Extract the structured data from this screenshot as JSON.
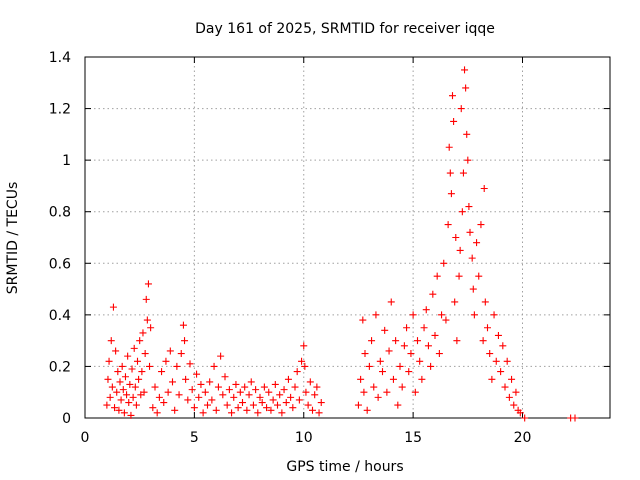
{
  "chart_data": {
    "type": "scatter",
    "title": "Day 161 of 2025, SRMTID for receiver iqqe",
    "xlabel": "GPS time / hours",
    "ylabel": "SRMTID / TECUs",
    "xlim": [
      0,
      24
    ],
    "ylim": [
      0,
      1.4
    ],
    "x_ticks": [
      0,
      5,
      10,
      15,
      20
    ],
    "x_tick_labels": [
      "0",
      "5",
      "10",
      "15",
      "20"
    ],
    "y_ticks": [
      0,
      0.2,
      0.4,
      0.6,
      0.8,
      1.0,
      1.2,
      1.4
    ],
    "y_tick_labels": [
      "0",
      "0.2",
      "0.4",
      "0.6",
      "0.8",
      "1",
      "1.2",
      "1.4"
    ],
    "grid": true,
    "marker": "plus",
    "series": [
      {
        "name": "SRMTID",
        "color": "#ff0000",
        "points": [
          [
            1.0,
            0.05
          ],
          [
            1.05,
            0.15
          ],
          [
            1.1,
            0.22
          ],
          [
            1.15,
            0.08
          ],
          [
            1.2,
            0.3
          ],
          [
            1.25,
            0.12
          ],
          [
            1.3,
            0.43
          ],
          [
            1.35,
            0.04
          ],
          [
            1.4,
            0.26
          ],
          [
            1.45,
            0.1
          ],
          [
            1.5,
            0.18
          ],
          [
            1.55,
            0.03
          ],
          [
            1.6,
            0.14
          ],
          [
            1.65,
            0.07
          ],
          [
            1.7,
            0.2
          ],
          [
            1.75,
            0.11
          ],
          [
            1.8,
            0.02
          ],
          [
            1.85,
            0.16
          ],
          [
            1.9,
            0.09
          ],
          [
            1.95,
            0.24
          ],
          [
            2.0,
            0.06
          ],
          [
            2.05,
            0.13
          ],
          [
            2.1,
            0.01
          ],
          [
            2.15,
            0.19
          ],
          [
            2.2,
            0.08
          ],
          [
            2.25,
            0.27
          ],
          [
            2.3,
            0.12
          ],
          [
            2.35,
            0.05
          ],
          [
            2.4,
            0.22
          ],
          [
            2.45,
            0.15
          ],
          [
            2.5,
            0.3
          ],
          [
            2.55,
            0.09
          ],
          [
            2.6,
            0.18
          ],
          [
            2.65,
            0.33
          ],
          [
            2.7,
            0.1
          ],
          [
            2.75,
            0.25
          ],
          [
            2.8,
            0.46
          ],
          [
            2.85,
            0.38
          ],
          [
            2.9,
            0.52
          ],
          [
            2.95,
            0.2
          ],
          [
            3.0,
            0.35
          ],
          [
            3.1,
            0.04
          ],
          [
            3.2,
            0.12
          ],
          [
            3.3,
            0.02
          ],
          [
            3.4,
            0.08
          ],
          [
            3.5,
            0.18
          ],
          [
            3.6,
            0.06
          ],
          [
            3.7,
            0.22
          ],
          [
            3.8,
            0.1
          ],
          [
            3.9,
            0.26
          ],
          [
            4.0,
            0.14
          ],
          [
            4.1,
            0.03
          ],
          [
            4.2,
            0.2
          ],
          [
            4.3,
            0.09
          ],
          [
            4.4,
            0.25
          ],
          [
            4.5,
            0.36
          ],
          [
            4.55,
            0.3
          ],
          [
            4.6,
            0.15
          ],
          [
            4.7,
            0.07
          ],
          [
            4.8,
            0.21
          ],
          [
            4.9,
            0.11
          ],
          [
            5.0,
            0.04
          ],
          [
            5.1,
            0.17
          ],
          [
            5.2,
            0.08
          ],
          [
            5.3,
            0.13
          ],
          [
            5.4,
            0.02
          ],
          [
            5.5,
            0.1
          ],
          [
            5.6,
            0.05
          ],
          [
            5.7,
            0.14
          ],
          [
            5.8,
            0.07
          ],
          [
            5.9,
            0.2
          ],
          [
            6.0,
            0.03
          ],
          [
            6.1,
            0.12
          ],
          [
            6.2,
            0.24
          ],
          [
            6.3,
            0.09
          ],
          [
            6.4,
            0.16
          ],
          [
            6.5,
            0.05
          ],
          [
            6.6,
            0.11
          ],
          [
            6.7,
            0.02
          ],
          [
            6.8,
            0.08
          ],
          [
            6.9,
            0.13
          ],
          [
            7.0,
            0.04
          ],
          [
            7.1,
            0.1
          ],
          [
            7.2,
            0.06
          ],
          [
            7.3,
            0.12
          ],
          [
            7.4,
            0.03
          ],
          [
            7.5,
            0.09
          ],
          [
            7.6,
            0.14
          ],
          [
            7.7,
            0.05
          ],
          [
            7.8,
            0.11
          ],
          [
            7.9,
            0.02
          ],
          [
            8.0,
            0.08
          ],
          [
            8.1,
            0.06
          ],
          [
            8.2,
            0.12
          ],
          [
            8.3,
            0.04
          ],
          [
            8.4,
            0.1
          ],
          [
            8.5,
            0.03
          ],
          [
            8.6,
            0.07
          ],
          [
            8.7,
            0.13
          ],
          [
            8.8,
            0.05
          ],
          [
            8.9,
            0.09
          ],
          [
            9.0,
            0.02
          ],
          [
            9.1,
            0.11
          ],
          [
            9.2,
            0.06
          ],
          [
            9.3,
            0.15
          ],
          [
            9.4,
            0.08
          ],
          [
            9.5,
            0.04
          ],
          [
            9.6,
            0.12
          ],
          [
            9.7,
            0.18
          ],
          [
            9.8,
            0.07
          ],
          [
            9.9,
            0.22
          ],
          [
            10.0,
            0.28
          ],
          [
            10.05,
            0.2
          ],
          [
            10.1,
            0.1
          ],
          [
            10.2,
            0.05
          ],
          [
            10.3,
            0.14
          ],
          [
            10.4,
            0.03
          ],
          [
            10.5,
            0.09
          ],
          [
            10.6,
            0.12
          ],
          [
            10.7,
            0.02
          ],
          [
            10.8,
            0.06
          ],
          [
            12.5,
            0.05
          ],
          [
            12.6,
            0.15
          ],
          [
            12.7,
            0.38
          ],
          [
            12.75,
            0.1
          ],
          [
            12.8,
            0.25
          ],
          [
            12.9,
            0.03
          ],
          [
            13.0,
            0.2
          ],
          [
            13.1,
            0.3
          ],
          [
            13.2,
            0.12
          ],
          [
            13.3,
            0.4
          ],
          [
            13.4,
            0.08
          ],
          [
            13.5,
            0.22
          ],
          [
            13.6,
            0.18
          ],
          [
            13.7,
            0.34
          ],
          [
            13.8,
            0.1
          ],
          [
            13.9,
            0.26
          ],
          [
            14.0,
            0.45
          ],
          [
            14.1,
            0.15
          ],
          [
            14.2,
            0.3
          ],
          [
            14.3,
            0.05
          ],
          [
            14.4,
            0.2
          ],
          [
            14.5,
            0.12
          ],
          [
            14.6,
            0.28
          ],
          [
            14.7,
            0.35
          ],
          [
            14.8,
            0.18
          ],
          [
            14.9,
            0.25
          ],
          [
            15.0,
            0.4
          ],
          [
            15.1,
            0.1
          ],
          [
            15.2,
            0.3
          ],
          [
            15.3,
            0.22
          ],
          [
            15.4,
            0.15
          ],
          [
            15.5,
            0.35
          ],
          [
            15.6,
            0.42
          ],
          [
            15.7,
            0.28
          ],
          [
            15.8,
            0.2
          ],
          [
            15.9,
            0.48
          ],
          [
            16.0,
            0.32
          ],
          [
            16.1,
            0.55
          ],
          [
            16.2,
            0.25
          ],
          [
            16.3,
            0.4
          ],
          [
            16.4,
            0.6
          ],
          [
            16.5,
            0.38
          ],
          [
            16.6,
            0.75
          ],
          [
            16.65,
            1.05
          ],
          [
            16.7,
            0.95
          ],
          [
            16.75,
            0.87
          ],
          [
            16.8,
            1.25
          ],
          [
            16.85,
            1.15
          ],
          [
            16.9,
            0.45
          ],
          [
            16.95,
            0.7
          ],
          [
            17.0,
            0.3
          ],
          [
            17.1,
            0.55
          ],
          [
            17.15,
            0.65
          ],
          [
            17.2,
            1.2
          ],
          [
            17.25,
            0.8
          ],
          [
            17.3,
            0.95
          ],
          [
            17.35,
            1.35
          ],
          [
            17.4,
            1.28
          ],
          [
            17.45,
            1.1
          ],
          [
            17.5,
            1.0
          ],
          [
            17.55,
            0.82
          ],
          [
            17.6,
            0.72
          ],
          [
            17.7,
            0.62
          ],
          [
            17.75,
            0.5
          ],
          [
            17.8,
            0.4
          ],
          [
            17.9,
            0.68
          ],
          [
            18.0,
            0.55
          ],
          [
            18.1,
            0.75
          ],
          [
            18.2,
            0.3
          ],
          [
            18.25,
            0.89
          ],
          [
            18.3,
            0.45
          ],
          [
            18.4,
            0.35
          ],
          [
            18.5,
            0.25
          ],
          [
            18.6,
            0.15
          ],
          [
            18.7,
            0.4
          ],
          [
            18.8,
            0.22
          ],
          [
            18.9,
            0.32
          ],
          [
            19.0,
            0.18
          ],
          [
            19.1,
            0.28
          ],
          [
            19.2,
            0.12
          ],
          [
            19.3,
            0.22
          ],
          [
            19.4,
            0.08
          ],
          [
            19.5,
            0.15
          ],
          [
            19.6,
            0.05
          ],
          [
            19.7,
            0.1
          ],
          [
            19.8,
            0.03
          ],
          [
            19.9,
            0.02
          ],
          [
            20.1,
            0.0
          ],
          [
            22.2,
            0.0
          ],
          [
            22.4,
            0.0
          ]
        ]
      }
    ]
  }
}
